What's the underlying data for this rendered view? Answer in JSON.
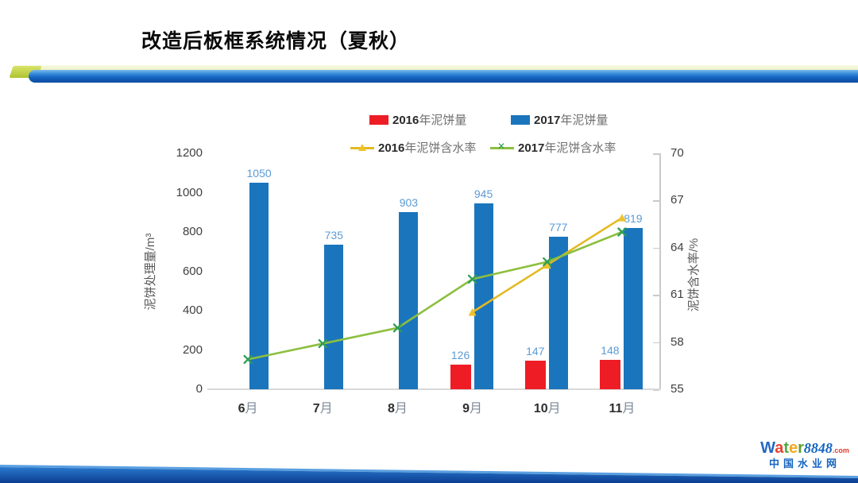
{
  "slide": {
    "title": "改造后板框系统情况（夏秋）"
  },
  "chart_data": {
    "type": "bar+line combo",
    "categories": [
      "6月",
      "7月",
      "8月",
      "9月",
      "10月",
      "11月"
    ],
    "bar_series": [
      {
        "name": "2016年泥饼量",
        "color": "#ee1c25",
        "values": [
          null,
          null,
          null,
          126,
          147,
          148
        ]
      },
      {
        "name": "2017年泥饼量",
        "color": "#1b75bc",
        "values": [
          1050,
          735,
          903,
          945,
          777,
          819
        ]
      }
    ],
    "line_series": [
      {
        "name": "2016年泥饼含水率",
        "color": "#e3b922",
        "marker": "triangle",
        "marker_color": "#eec32a",
        "values": [
          null,
          null,
          null,
          59.9,
          62.9,
          65.9
        ]
      },
      {
        "name": "2017年泥饼含水率",
        "color": "#8cbf3f",
        "marker": "x",
        "marker_color": "#2f9e55",
        "values": [
          56.9,
          57.9,
          58.9,
          62.0,
          63.1,
          65.0
        ]
      }
    ],
    "left_axis": {
      "title": "泥饼处理量/m³",
      "min": 0,
      "max": 1200,
      "step": 200
    },
    "right_axis": {
      "title": "泥饼含水率/%",
      "min": 55,
      "max": 70,
      "step": 3
    },
    "bar_label_color": "#5b9bd5",
    "legend_position": "top",
    "grid": "off"
  },
  "logo": {
    "word_letters": [
      {
        "ch": "W",
        "color": "#2268c4"
      },
      {
        "ch": "a",
        "color": "#e8432e"
      },
      {
        "ch": "t",
        "color": "#52a943"
      },
      {
        "ch": "e",
        "color": "#f2a71f"
      },
      {
        "ch": "r",
        "color": "#5aa030"
      }
    ],
    "numbers": "8848",
    "dot_com": ".com",
    "subtitle": "中国水业网"
  }
}
